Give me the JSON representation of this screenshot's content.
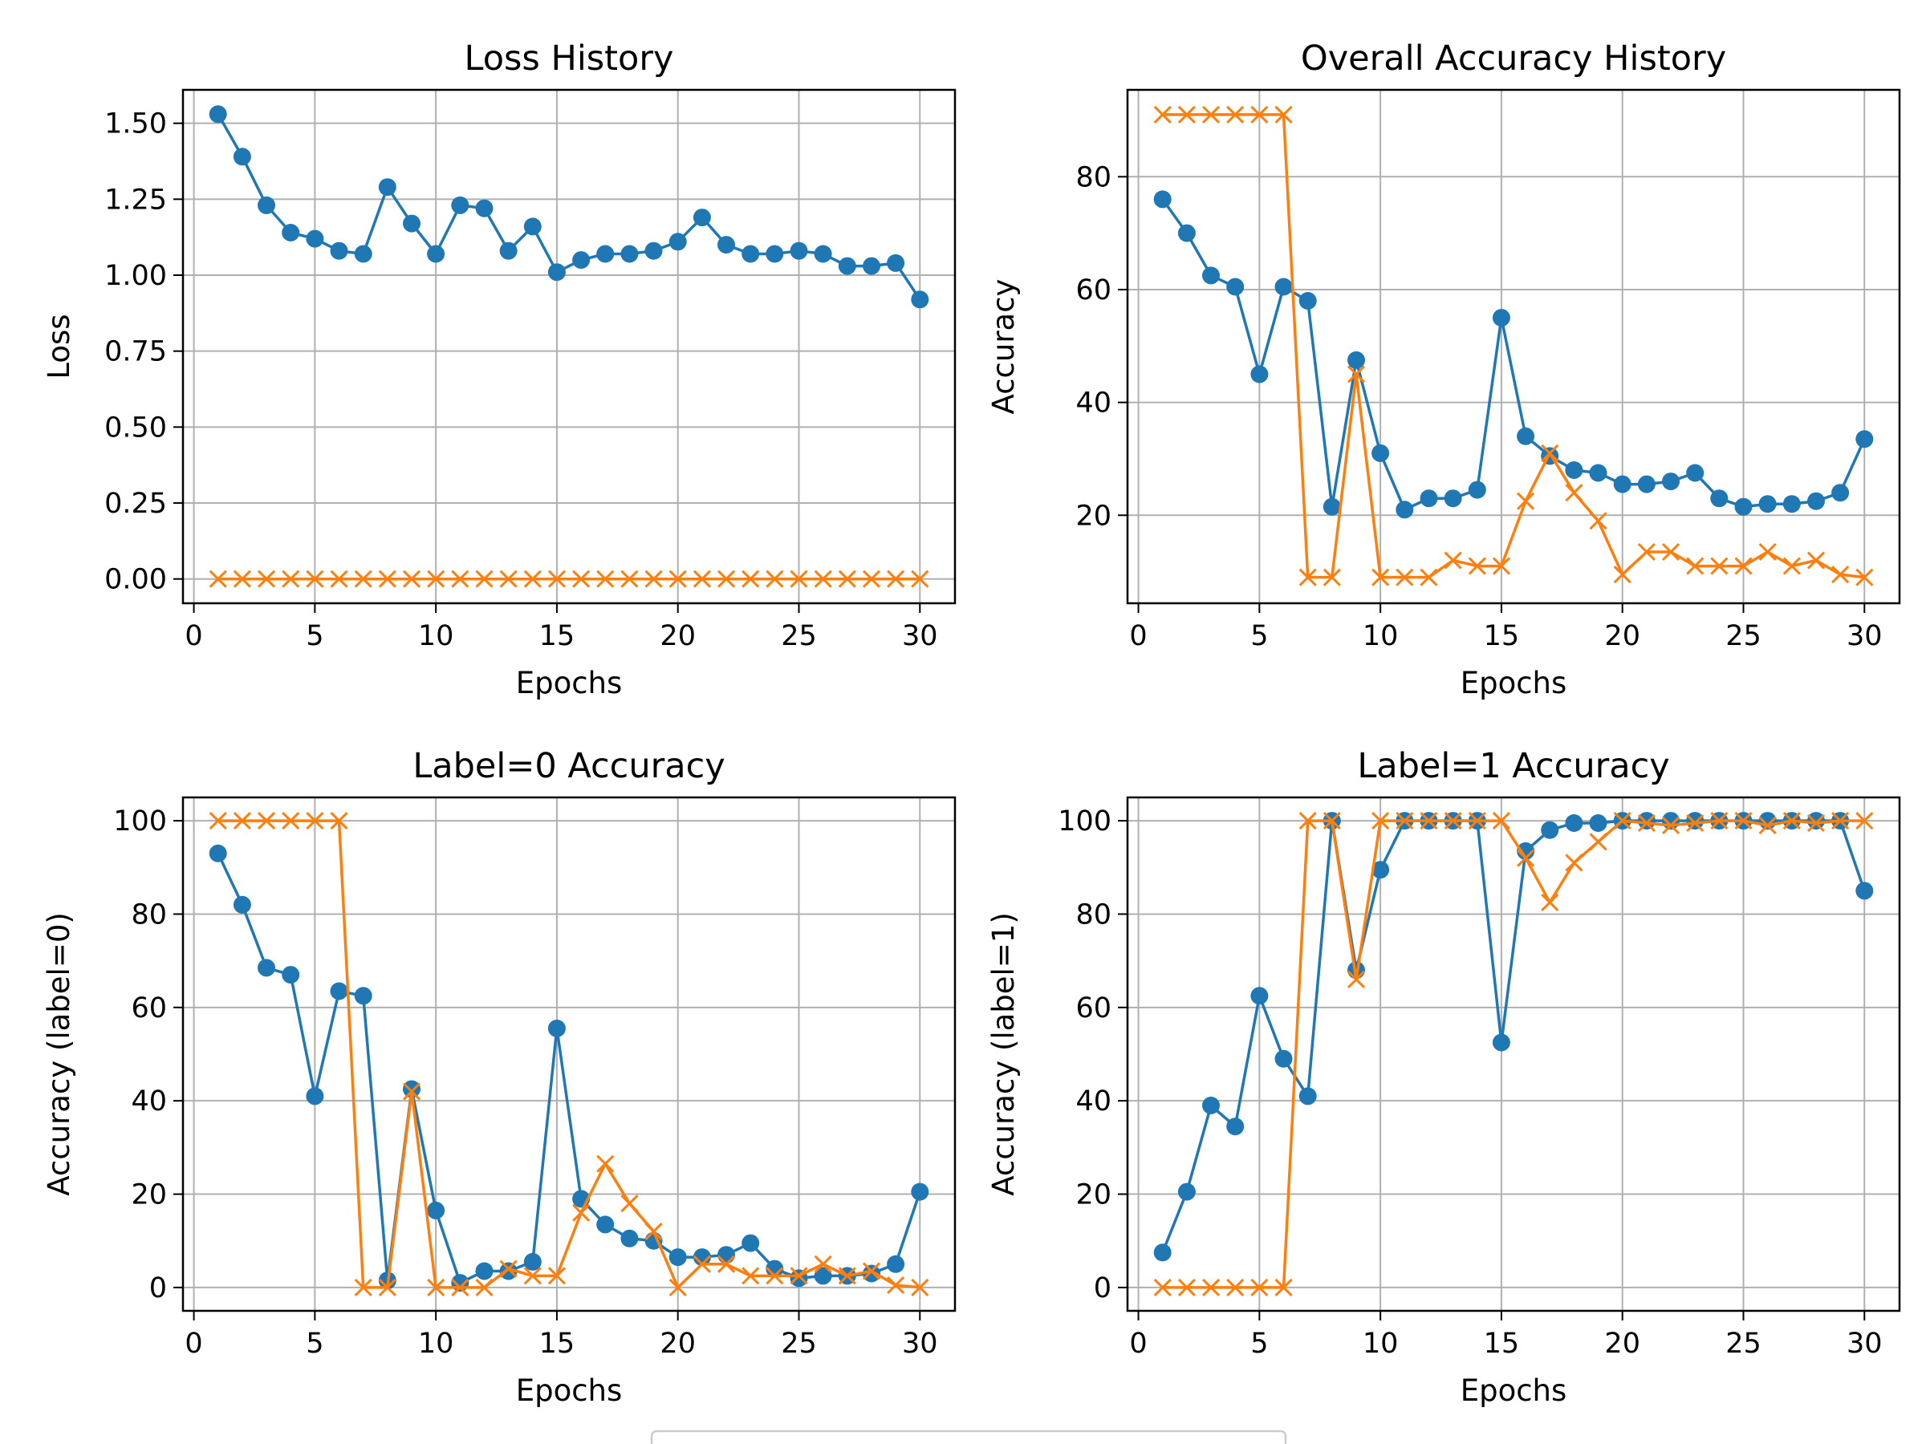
{
  "colors": {
    "series_1": "#1f77b4",
    "series_2": "#ff7f0e",
    "grid": "#b0b0b0",
    "legend_border": "#cccccc"
  },
  "legend": {
    "entries": [
      "",
      ""
    ]
  },
  "chart_data": [
    {
      "type": "line",
      "title": "Loss History",
      "xlabel": "Epochs",
      "ylabel": "Loss",
      "xlim": [
        -0.45,
        31.45
      ],
      "ylim": [
        -0.08,
        1.61
      ],
      "xticks": [
        0,
        5,
        10,
        15,
        20,
        25,
        30
      ],
      "yticks": [
        0.0,
        0.25,
        0.5,
        0.75,
        1.0,
        1.25,
        1.5
      ],
      "ytick_labels": [
        "0.00",
        "0.25",
        "0.50",
        "0.75",
        "1.00",
        "1.25",
        "1.50"
      ],
      "grid": true,
      "x": [
        1,
        2,
        3,
        4,
        5,
        6,
        7,
        8,
        9,
        10,
        11,
        12,
        13,
        14,
        15,
        16,
        17,
        18,
        19,
        20,
        21,
        22,
        23,
        24,
        25,
        26,
        27,
        28,
        29,
        30
      ],
      "series": [
        {
          "marker": "circle",
          "values": [
            1.53,
            1.39,
            1.23,
            1.14,
            1.12,
            1.08,
            1.07,
            1.29,
            1.17,
            1.07,
            1.23,
            1.22,
            1.08,
            1.16,
            1.01,
            1.05,
            1.07,
            1.07,
            1.08,
            1.11,
            1.19,
            1.1,
            1.07,
            1.07,
            1.08,
            1.07,
            1.03,
            1.03,
            1.04,
            0.92
          ]
        },
        {
          "marker": "x",
          "values": [
            0,
            0,
            0,
            0,
            0,
            0,
            0,
            0,
            0,
            0,
            0,
            0,
            0,
            0,
            0,
            0,
            0,
            0,
            0,
            0,
            0,
            0,
            0,
            0,
            0,
            0,
            0,
            0,
            0,
            0
          ]
        }
      ]
    },
    {
      "type": "line",
      "title": "Overall Accuracy History",
      "xlabel": "Epochs",
      "ylabel": "Accuracy",
      "xlim": [
        -0.45,
        31.45
      ],
      "ylim": [
        4.4,
        95.4
      ],
      "xticks": [
        0,
        5,
        10,
        15,
        20,
        25,
        30
      ],
      "yticks": [
        20,
        40,
        60,
        80
      ],
      "ytick_labels": [
        "20",
        "40",
        "60",
        "80"
      ],
      "grid": true,
      "x": [
        1,
        2,
        3,
        4,
        5,
        6,
        7,
        8,
        9,
        10,
        11,
        12,
        13,
        14,
        15,
        16,
        17,
        18,
        19,
        20,
        21,
        22,
        23,
        24,
        25,
        26,
        27,
        28,
        29,
        30
      ],
      "series": [
        {
          "marker": "circle",
          "values": [
            76,
            70,
            62.5,
            60.5,
            45,
            60.5,
            58,
            21.5,
            47.5,
            31,
            21,
            23,
            23,
            24.5,
            55,
            34,
            30.5,
            28,
            27.5,
            25.5,
            25.5,
            26,
            27.5,
            23,
            21.5,
            22,
            22,
            22.5,
            24,
            33.5
          ]
        },
        {
          "marker": "x",
          "values": [
            91,
            91,
            91,
            91,
            91,
            91,
            9,
            9,
            45,
            9,
            9,
            9,
            12,
            11,
            11,
            22.5,
            31,
            24,
            19,
            9.5,
            13.5,
            13.5,
            11,
            11,
            11,
            13.5,
            11,
            12,
            9.5,
            9
          ]
        }
      ]
    },
    {
      "type": "line",
      "title": "Label=0 Accuracy",
      "xlabel": "Epochs",
      "ylabel": "Accuracy (label=0)",
      "xlim": [
        -0.45,
        31.45
      ],
      "ylim": [
        -5,
        105
      ],
      "xticks": [
        0,
        5,
        10,
        15,
        20,
        25,
        30
      ],
      "yticks": [
        0,
        20,
        40,
        60,
        80,
        100
      ],
      "ytick_labels": [
        "0",
        "20",
        "40",
        "60",
        "80",
        "100"
      ],
      "grid": true,
      "x": [
        1,
        2,
        3,
        4,
        5,
        6,
        7,
        8,
        9,
        10,
        11,
        12,
        13,
        14,
        15,
        16,
        17,
        18,
        19,
        20,
        21,
        22,
        23,
        24,
        25,
        26,
        27,
        28,
        29,
        30
      ],
      "series": [
        {
          "marker": "circle",
          "values": [
            93,
            82,
            68.5,
            67,
            41,
            63.5,
            62.5,
            1.5,
            42.5,
            16.5,
            1,
            3.5,
            3.5,
            5.5,
            55.5,
            19,
            13.5,
            10.5,
            10,
            6.5,
            6.5,
            7,
            9.5,
            4,
            2,
            2.5,
            2.5,
            3,
            5,
            20.5
          ]
        },
        {
          "marker": "x",
          "values": [
            100,
            100,
            100,
            100,
            100,
            100,
            0,
            0,
            42,
            0,
            0,
            0,
            4,
            2.5,
            2.5,
            16,
            26.5,
            18,
            12,
            0,
            5,
            5,
            2.5,
            2.5,
            2.5,
            5,
            2.5,
            3.5,
            0.5,
            0
          ]
        }
      ]
    },
    {
      "type": "line",
      "title": "Label=1 Accuracy",
      "xlabel": "Epochs",
      "ylabel": "Accuracy (label=1)",
      "xlim": [
        -0.45,
        31.45
      ],
      "ylim": [
        -5,
        105
      ],
      "xticks": [
        0,
        5,
        10,
        15,
        20,
        25,
        30
      ],
      "yticks": [
        0,
        20,
        40,
        60,
        80,
        100
      ],
      "ytick_labels": [
        "0",
        "20",
        "40",
        "60",
        "80",
        "100"
      ],
      "grid": true,
      "x": [
        1,
        2,
        3,
        4,
        5,
        6,
        7,
        8,
        9,
        10,
        11,
        12,
        13,
        14,
        15,
        16,
        17,
        18,
        19,
        20,
        21,
        22,
        23,
        24,
        25,
        26,
        27,
        28,
        29,
        30
      ],
      "series": [
        {
          "marker": "circle",
          "values": [
            7.5,
            20.5,
            39,
            34.5,
            62.5,
            49,
            41,
            100,
            68,
            89.5,
            100,
            100,
            100,
            100,
            52.5,
            93.5,
            98,
            99.5,
            99.5,
            100,
            100,
            100,
            100,
            100,
            100,
            100,
            100,
            100,
            100,
            85
          ]
        },
        {
          "marker": "x",
          "values": [
            0,
            0,
            0,
            0,
            0,
            0,
            100,
            100,
            66,
            100,
            100,
            100,
            100,
            100,
            100,
            92,
            82.5,
            91,
            95.5,
            100,
            99.5,
            99,
            99.5,
            100,
            100,
            99,
            100,
            99.5,
            100,
            100
          ]
        }
      ]
    }
  ]
}
